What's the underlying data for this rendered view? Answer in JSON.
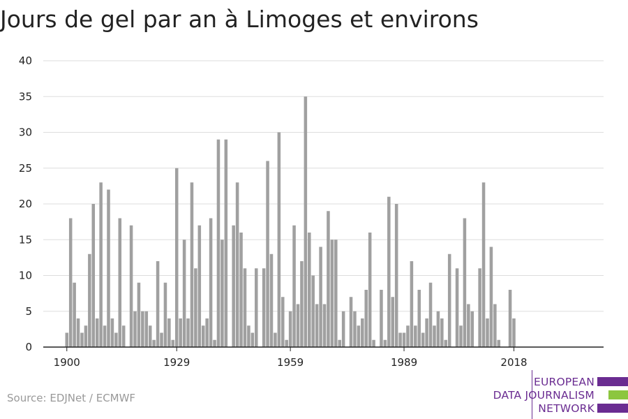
{
  "title": "Jours de gel par an à Limoges et environs",
  "source": "Source: EDJNet / ECMWF",
  "logo": {
    "lines": [
      "EUROPEAN",
      "DATA JOURNALISM",
      "NETWORK"
    ],
    "colors": {
      "purple": "#6a2c91",
      "green": "#8cc63f"
    }
  },
  "colors": {
    "bar": "#a0a0a0",
    "grid": "#dddddd",
    "axis": "#222222",
    "text": "#222222"
  },
  "chart_data": {
    "type": "bar",
    "title": "Jours de gel par an à Limoges et environs",
    "xlabel": "",
    "ylabel": "",
    "x_start": 1900,
    "x_end": 2018,
    "xticks": [
      1900,
      1929,
      1959,
      1989,
      2018
    ],
    "yticks": [
      0,
      5,
      10,
      15,
      20,
      25,
      30,
      35,
      40
    ],
    "ylim": [
      0,
      40
    ],
    "grid": true,
    "values": [
      2,
      18,
      9,
      4,
      2,
      3,
      13,
      20,
      4,
      23,
      3,
      22,
      4,
      2,
      18,
      3,
      0,
      17,
      5,
      9,
      5,
      5,
      3,
      1,
      12,
      2,
      9,
      4,
      1,
      25,
      4,
      15,
      4,
      23,
      11,
      17,
      3,
      4,
      18,
      1,
      29,
      15,
      29,
      0,
      17,
      23,
      16,
      11,
      3,
      2,
      11,
      0,
      11,
      26,
      13,
      2,
      30,
      7,
      1,
      5,
      17,
      6,
      12,
      35,
      16,
      10,
      6,
      14,
      6,
      19,
      15,
      15,
      1,
      5,
      0,
      7,
      5,
      3,
      4,
      8,
      16,
      1,
      0,
      8,
      1,
      21,
      7,
      20,
      2,
      2,
      3,
      12,
      3,
      8,
      2,
      4,
      9,
      3,
      5,
      4,
      1,
      13,
      0,
      11,
      3,
      18,
      6,
      5,
      0,
      11,
      23,
      4,
      14,
      6,
      1,
      0,
      0,
      8,
      4
    ]
  }
}
